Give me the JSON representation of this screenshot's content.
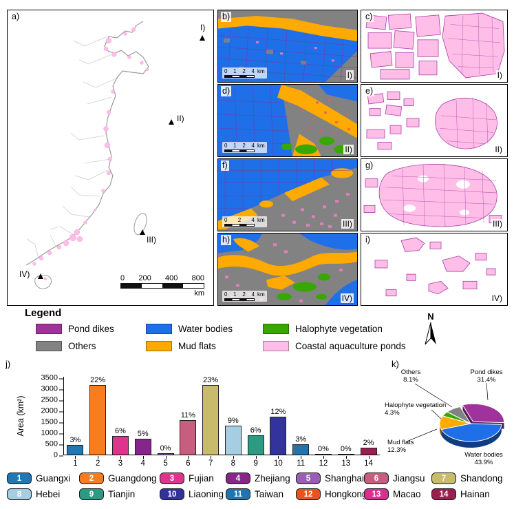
{
  "panels": {
    "a": {
      "letter": "a)",
      "markers": [
        "I)",
        "II)",
        "III)",
        "IV)"
      ],
      "scale_ticks": [
        "0",
        "200",
        "400",
        "800"
      ],
      "scale_unit": "km"
    },
    "b": {
      "letter": "b)",
      "roman": "I)",
      "scale_ticks": [
        "0",
        "1",
        "2",
        "4"
      ],
      "scale_unit": "km"
    },
    "c": {
      "letter": "c)",
      "roman": "I)"
    },
    "d": {
      "letter": "d)",
      "roman": "II)",
      "scale_ticks": [
        "0",
        "1",
        "2",
        "4"
      ],
      "scale_unit": "km"
    },
    "e": {
      "letter": "e)",
      "roman": "II)"
    },
    "f": {
      "letter": "f)",
      "roman": "III)",
      "scale_ticks": [
        "0",
        "2",
        "4"
      ],
      "scale_unit": "km"
    },
    "g": {
      "letter": "g)",
      "roman": "III)"
    },
    "h": {
      "letter": "h)",
      "roman": "IV)",
      "scale_ticks": [
        "0",
        "1",
        "2",
        "4"
      ],
      "scale_unit": "km"
    },
    "i": {
      "letter": "i)",
      "roman": "IV)"
    }
  },
  "legend": {
    "title": "Legend",
    "north_label": "N",
    "items": [
      {
        "label": "Pond dikes",
        "color": "#A0329B"
      },
      {
        "label": "Water bodies",
        "color": "#1F6FE8"
      },
      {
        "label": "Halophyte vegetation",
        "color": "#38A800"
      },
      {
        "label": "Others",
        "color": "#828282"
      },
      {
        "label": "Mud flats",
        "color": "#FFAA00"
      },
      {
        "label": "Coastal aquaculture ponds",
        "color": "#FFBEE8"
      }
    ]
  },
  "chart_data": [
    {
      "type": "bar",
      "panel_label": "j)",
      "title": "",
      "xlabel": "",
      "ylabel": "Area (km²)",
      "ylim": [
        0,
        3500
      ],
      "yticks": [
        0,
        500,
        1000,
        1500,
        2000,
        2500,
        3000,
        3500
      ],
      "grid": false,
      "categories": [
        "1",
        "2",
        "3",
        "4",
        "5",
        "6",
        "7",
        "8",
        "9",
        "10",
        "11",
        "12",
        "13",
        "14"
      ],
      "values": [
        430,
        3200,
        850,
        720,
        60,
        1550,
        3300,
        1310,
        870,
        1730,
        470,
        15,
        10,
        300
      ],
      "percent_labels": [
        "3%",
        "22%",
        "6%",
        "5%",
        "0%",
        "11%",
        "23%",
        "9%",
        "6%",
        "12%",
        "3%",
        "0%",
        "0%",
        "2%"
      ],
      "colors": [
        "#1F77B4",
        "#F87D1E",
        "#E0338C",
        "#86258A",
        "#9A5FB5",
        "#C75D7F",
        "#C8BC6A",
        "#A6CEE3",
        "#2D9B82",
        "#33339E",
        "#2374AE",
        "#E9531D",
        "#D8308F",
        "#9B1F4E"
      ]
    },
    {
      "type": "pie",
      "panel_label": "k)",
      "start_angle": 110,
      "slices": [
        {
          "name": "Pond dikes",
          "pct": 31.4,
          "color": "#A0329B",
          "explode": 6
        },
        {
          "name": "Water bodies",
          "pct": 43.9,
          "color": "#1F6FE8",
          "explode": 0
        },
        {
          "name": "Mud flats",
          "pct": 12.3,
          "color": "#FFAA00",
          "explode": 0
        },
        {
          "name": "Halophyte vegetation",
          "pct": 4.3,
          "color": "#38A800",
          "explode": 0
        },
        {
          "name": "Others",
          "pct": 8.1,
          "color": "#828282",
          "explode": 0
        }
      ],
      "labels": [
        {
          "lines": [
            "Others",
            "8.1%"
          ],
          "x": 40,
          "y": 16,
          "anchor": "middle",
          "leader": [
            46,
            30,
            100,
            64
          ]
        },
        {
          "lines": [
            "Pond dikes",
            "31.4%"
          ],
          "x": 150,
          "y": 16,
          "anchor": "middle",
          "leader": [
            150,
            29,
            152,
            54
          ]
        },
        {
          "lines": [
            "Halophyte vegetation",
            "4.3%"
          ],
          "x": 2,
          "y": 64,
          "anchor": "start",
          "leader": [
            70,
            68,
            84,
            81
          ]
        },
        {
          "lines": [
            "Mud flats",
            "12.3%"
          ],
          "x": 6,
          "y": 118,
          "anchor": "start",
          "leader": [
            34,
            114,
            78,
            96
          ]
        },
        {
          "lines": [
            "Water bodies",
            "43.9%"
          ],
          "x": 146,
          "y": 136,
          "anchor": "middle"
        }
      ]
    }
  ],
  "provinces": {
    "items": [
      {
        "num": "1",
        "name": "Guangxi",
        "color": "#1F77B4"
      },
      {
        "num": "2",
        "name": "Guangdong",
        "color": "#F87D1E"
      },
      {
        "num": "3",
        "name": "Fujian",
        "color": "#E0338C"
      },
      {
        "num": "4",
        "name": "Zhejiang",
        "color": "#86258A"
      },
      {
        "num": "5",
        "name": "Shanghai",
        "color": "#9A5FB5"
      },
      {
        "num": "6",
        "name": "Jiangsu",
        "color": "#C75D7F"
      },
      {
        "num": "7",
        "name": "Shandong",
        "color": "#C8BC6A"
      },
      {
        "num": "8",
        "name": "Hebei",
        "color": "#A6CEE3"
      },
      {
        "num": "9",
        "name": "Tianjin",
        "color": "#2D9B82"
      },
      {
        "num": "10",
        "name": "Liaoning",
        "color": "#33339E"
      },
      {
        "num": "11",
        "name": "Taiwan",
        "color": "#2374AE"
      },
      {
        "num": "12",
        "name": "Hongkong",
        "color": "#E9531D"
      },
      {
        "num": "13",
        "name": "Macao",
        "color": "#D8308F"
      },
      {
        "num": "14",
        "name": "Hainan",
        "color": "#9B1F4E"
      }
    ]
  }
}
